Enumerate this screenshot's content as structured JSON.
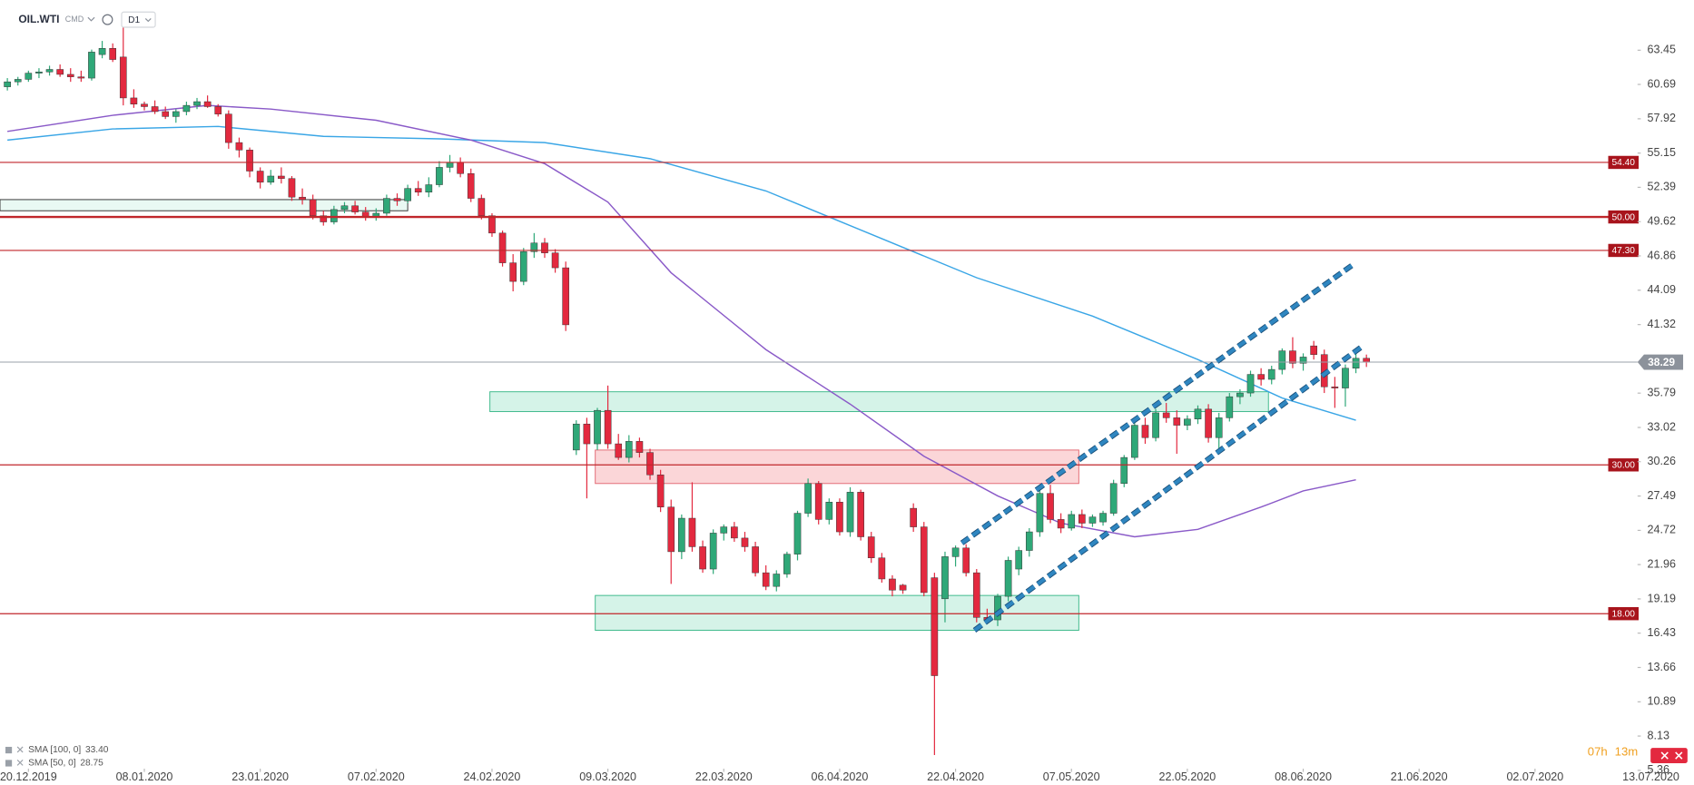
{
  "chart_data": {
    "type": "candlestick",
    "symbol": "OIL.WTI",
    "market": "CMD",
    "interval": "D1",
    "up_color": "#2fa878",
    "down_color": "#e3293f",
    "ohlc": [
      [
        60.5,
        61.2,
        60.2,
        60.9
      ],
      [
        60.9,
        61.3,
        60.6,
        61.1
      ],
      [
        61.1,
        61.8,
        60.9,
        61.6
      ],
      [
        61.6,
        62.0,
        61.2,
        61.7
      ],
      [
        61.7,
        62.2,
        61.4,
        61.9
      ],
      [
        61.9,
        62.3,
        61.3,
        61.5
      ],
      [
        61.5,
        62.0,
        60.9,
        61.3
      ],
      [
        61.3,
        61.8,
        60.9,
        61.2
      ],
      [
        61.2,
        63.5,
        61.0,
        63.3
      ],
      [
        63.1,
        64.2,
        62.8,
        63.6
      ],
      [
        63.6,
        64.0,
        62.5,
        62.7
      ],
      [
        62.9,
        65.6,
        59.0,
        59.6
      ],
      [
        59.6,
        60.3,
        58.8,
        59.1
      ],
      [
        59.1,
        59.3,
        58.6,
        58.9
      ],
      [
        58.9,
        59.4,
        58.3,
        58.5
      ],
      [
        58.5,
        58.9,
        57.9,
        58.1
      ],
      [
        58.1,
        58.7,
        57.6,
        58.5
      ],
      [
        58.5,
        59.3,
        58.2,
        59.0
      ],
      [
        59.0,
        59.6,
        58.7,
        59.3
      ],
      [
        59.3,
        59.8,
        58.8,
        58.9
      ],
      [
        58.9,
        59.1,
        58.1,
        58.3
      ],
      [
        58.3,
        58.6,
        55.5,
        56.0
      ],
      [
        56.0,
        56.4,
        54.8,
        55.4
      ],
      [
        55.4,
        55.6,
        53.2,
        53.7
      ],
      [
        53.7,
        54.0,
        52.3,
        52.8
      ],
      [
        52.8,
        53.8,
        52.6,
        53.3
      ],
      [
        53.3,
        54.0,
        52.7,
        53.1
      ],
      [
        53.1,
        53.3,
        51.3,
        51.6
      ],
      [
        51.6,
        52.3,
        51.0,
        51.4
      ],
      [
        51.4,
        51.8,
        49.8,
        50.1
      ],
      [
        50.1,
        50.5,
        49.3,
        49.6
      ],
      [
        49.6,
        50.9,
        49.4,
        50.6
      ],
      [
        50.6,
        51.2,
        50.3,
        50.9
      ],
      [
        50.9,
        51.3,
        50.2,
        50.4
      ],
      [
        50.4,
        50.8,
        49.7,
        50.0
      ],
      [
        50.0,
        50.7,
        49.7,
        50.3
      ],
      [
        50.3,
        51.8,
        50.1,
        51.5
      ],
      [
        51.5,
        51.9,
        50.9,
        51.3
      ],
      [
        51.3,
        52.6,
        51.1,
        52.3
      ],
      [
        52.3,
        52.9,
        51.7,
        52.0
      ],
      [
        52.0,
        53.2,
        51.6,
        52.6
      ],
      [
        52.6,
        54.5,
        52.4,
        54.0
      ],
      [
        54.0,
        55.0,
        53.6,
        54.4
      ],
      [
        54.4,
        54.8,
        53.2,
        53.5
      ],
      [
        53.5,
        53.9,
        51.2,
        51.5
      ],
      [
        51.5,
        51.8,
        49.8,
        50.1
      ],
      [
        50.1,
        50.3,
        48.4,
        48.7
      ],
      [
        48.7,
        48.9,
        46.0,
        46.3
      ],
      [
        46.3,
        47.0,
        44.0,
        44.8
      ],
      [
        44.8,
        47.5,
        44.5,
        47.2
      ],
      [
        47.2,
        48.7,
        46.7,
        47.9
      ],
      [
        47.9,
        48.3,
        46.7,
        47.1
      ],
      [
        47.1,
        47.4,
        45.5,
        45.9
      ],
      [
        45.9,
        46.4,
        40.8,
        41.3
      ],
      [
        31.2,
        33.6,
        30.8,
        33.3
      ],
      [
        33.3,
        33.8,
        27.3,
        31.7
      ],
      [
        31.7,
        34.6,
        31.2,
        34.4
      ],
      [
        34.4,
        36.4,
        31.3,
        31.7
      ],
      [
        31.7,
        32.5,
        30.4,
        30.6
      ],
      [
        30.6,
        32.4,
        30.2,
        31.9
      ],
      [
        31.9,
        32.2,
        30.6,
        31.0
      ],
      [
        31.0,
        31.3,
        28.8,
        29.2
      ],
      [
        29.2,
        29.6,
        26.2,
        26.6
      ],
      [
        26.6,
        27.2,
        20.4,
        23.0
      ],
      [
        23.0,
        26.0,
        22.4,
        25.7
      ],
      [
        25.7,
        28.6,
        23.0,
        23.4
      ],
      [
        23.4,
        23.9,
        21.3,
        21.6
      ],
      [
        21.6,
        24.8,
        21.2,
        24.5
      ],
      [
        24.5,
        25.2,
        23.9,
        25.0
      ],
      [
        25.0,
        25.4,
        23.8,
        24.1
      ],
      [
        24.1,
        24.6,
        23.0,
        23.4
      ],
      [
        23.4,
        23.8,
        21.0,
        21.3
      ],
      [
        21.3,
        21.9,
        19.9,
        20.2
      ],
      [
        20.2,
        21.5,
        19.8,
        21.2
      ],
      [
        21.2,
        23.0,
        20.9,
        22.8
      ],
      [
        22.8,
        26.3,
        22.3,
        26.1
      ],
      [
        26.1,
        28.9,
        25.8,
        28.5
      ],
      [
        28.5,
        28.7,
        25.2,
        25.6
      ],
      [
        25.6,
        27.3,
        25.2,
        27.0
      ],
      [
        27.0,
        27.3,
        24.3,
        24.6
      ],
      [
        24.6,
        28.2,
        24.2,
        27.8
      ],
      [
        27.8,
        28.0,
        23.9,
        24.2
      ],
      [
        24.2,
        24.6,
        22.1,
        22.5
      ],
      [
        22.5,
        22.9,
        20.5,
        20.8
      ],
      [
        20.8,
        21.1,
        19.4,
        19.9
      ],
      [
        20.3,
        20.4,
        19.6,
        19.9
      ],
      [
        26.5,
        26.9,
        24.6,
        25.0
      ],
      [
        25.0,
        25.4,
        19.4,
        19.7
      ],
      [
        20.9,
        21.3,
        6.6,
        13.0
      ],
      [
        19.2,
        23.0,
        17.3,
        22.6
      ],
      [
        22.6,
        23.5,
        21.8,
        23.3
      ],
      [
        23.3,
        23.6,
        21.0,
        21.3
      ],
      [
        21.3,
        21.6,
        17.3,
        17.7
      ],
      [
        17.7,
        18.4,
        17.2,
        17.5
      ],
      [
        17.5,
        19.6,
        17.0,
        19.4
      ],
      [
        19.4,
        22.6,
        19.0,
        22.3
      ],
      [
        21.6,
        23.4,
        21.1,
        23.1
      ],
      [
        23.1,
        24.9,
        22.6,
        24.6
      ],
      [
        24.6,
        28.0,
        24.2,
        27.7
      ],
      [
        27.7,
        28.4,
        25.3,
        25.6
      ],
      [
        25.6,
        26.1,
        24.5,
        24.9
      ],
      [
        24.9,
        26.3,
        24.7,
        26.0
      ],
      [
        26.0,
        26.4,
        24.9,
        25.3
      ],
      [
        25.3,
        26.0,
        25.0,
        25.8
      ],
      [
        25.4,
        26.3,
        25.1,
        26.1
      ],
      [
        26.1,
        28.8,
        25.9,
        28.5
      ],
      [
        28.5,
        30.8,
        28.2,
        30.6
      ],
      [
        30.6,
        33.6,
        30.4,
        33.2
      ],
      [
        33.2,
        33.8,
        31.7,
        32.2
      ],
      [
        32.2,
        34.5,
        31.9,
        34.2
      ],
      [
        34.2,
        35.0,
        33.4,
        33.8
      ],
      [
        33.8,
        34.4,
        30.9,
        33.2
      ],
      [
        33.2,
        34.0,
        32.8,
        33.7
      ],
      [
        33.7,
        34.8,
        33.3,
        34.5
      ],
      [
        34.5,
        34.9,
        31.8,
        32.2
      ],
      [
        32.2,
        34.2,
        31.1,
        33.8
      ],
      [
        33.8,
        35.8,
        33.5,
        35.5
      ],
      [
        35.5,
        36.1,
        34.9,
        35.8
      ],
      [
        35.8,
        37.6,
        35.5,
        37.3
      ],
      [
        37.3,
        37.8,
        36.4,
        36.9
      ],
      [
        36.9,
        38.0,
        36.5,
        37.7
      ],
      [
        37.7,
        39.4,
        37.3,
        39.2
      ],
      [
        39.2,
        40.3,
        37.8,
        38.2
      ],
      [
        38.2,
        39.0,
        37.6,
        38.7
      ],
      [
        39.6,
        40.0,
        38.5,
        38.9
      ],
      [
        38.9,
        39.3,
        35.8,
        36.3
      ],
      [
        36.3,
        37.1,
        34.6,
        36.2
      ],
      [
        36.2,
        38.1,
        34.7,
        37.8
      ],
      [
        37.8,
        39.2,
        37.4,
        38.6
      ],
      [
        38.6,
        38.9,
        37.9,
        38.3
      ]
    ],
    "xlim": [
      -0.7,
      157
    ],
    "xticks": [
      {
        "value": 2,
        "label": "20.12.2019"
      },
      {
        "value": 13,
        "label": "08.01.2020"
      },
      {
        "value": 24,
        "label": "23.01.2020"
      },
      {
        "value": 35,
        "label": "07.02.2020"
      },
      {
        "value": 46,
        "label": "24.02.2020"
      },
      {
        "value": 57,
        "label": "09.03.2020"
      },
      {
        "value": 68,
        "label": "22.03.2020"
      },
      {
        "value": 79,
        "label": "06.04.2020"
      },
      {
        "value": 90,
        "label": "22.04.2020"
      },
      {
        "value": 101,
        "label": "07.05.2020"
      },
      {
        "value": 112,
        "label": "22.05.2020"
      },
      {
        "value": 123,
        "label": "08.06.2020"
      },
      {
        "value": 134,
        "label": "21.06.2020"
      },
      {
        "value": 145,
        "label": "02.07.2020"
      },
      {
        "value": 156,
        "label": "13.07.2020"
      }
    ],
    "ylim": [
      5.5,
      67.5
    ],
    "yticks": [
      63.45,
      60.69,
      57.92,
      55.15,
      52.39,
      49.62,
      46.86,
      44.09,
      41.32,
      35.79,
      33.02,
      30.26,
      27.49,
      24.72,
      21.96,
      19.19,
      16.43,
      13.66,
      10.89,
      8.13,
      5.36
    ],
    "levels": {
      "color": "#c0262b",
      "values": [
        54.4,
        50,
        47.3,
        30,
        18
      ],
      "value_labels": [
        "54.40",
        "50.00",
        "47.30",
        "30.00",
        "18.00"
      ]
    },
    "last_price": 38.29,
    "zones": [
      {
        "color": "green",
        "x": [
          -0.7,
          38
        ],
        "y": [
          50.5,
          51.4
        ]
      },
      {
        "color": "green",
        "x": [
          45.8,
          119.7
        ],
        "y": [
          34.3,
          35.9
        ]
      },
      {
        "color": "red",
        "x": [
          55.8,
          101.7
        ],
        "y": [
          28.5,
          31.2
        ]
      },
      {
        "color": "green",
        "x": [
          55.8,
          101.7
        ],
        "y": [
          16.66,
          19.47
        ]
      }
    ],
    "channel": {
      "color": "#2f86c0",
      "lines": [
        {
          "x": [
            90.6,
            127.8
          ],
          "values": [
            23.7,
            46.2
          ]
        },
        {
          "x": [
            91.8,
            128.5
          ],
          "values": [
            16.66,
            39.5
          ]
        }
      ]
    },
    "indicators": [
      {
        "name": "SMA [100, 0]",
        "value": 33.4,
        "value_label": "33.40",
        "color": "#3aa6e6",
        "x": [
          0,
          10,
          20,
          30,
          41,
          51,
          61,
          72,
          82,
          92,
          103,
          113,
          121,
          128
        ],
        "values": [
          56.2,
          57.1,
          57.3,
          56.5,
          56.3,
          56.0,
          54.7,
          52.1,
          48.6,
          45.1,
          42.0,
          38.5,
          35.4,
          33.6
        ]
      },
      {
        "name": "SMA [50, 0]",
        "value": 28.75,
        "color": "#8a5ac8",
        "x": [
          0,
          10,
          19,
          25,
          35,
          44,
          51,
          57,
          63,
          72,
          80,
          87,
          94,
          100,
          107,
          113,
          119,
          123,
          128
        ],
        "values": [
          56.9,
          58.2,
          59.0,
          58.7,
          57.8,
          56.2,
          54.3,
          51.2,
          45.5,
          39.3,
          34.9,
          30.7,
          27.5,
          25.3,
          24.2,
          24.8,
          26.6,
          27.9,
          28.8
        ]
      }
    ],
    "timer": [
      "07h",
      "13m"
    ]
  }
}
